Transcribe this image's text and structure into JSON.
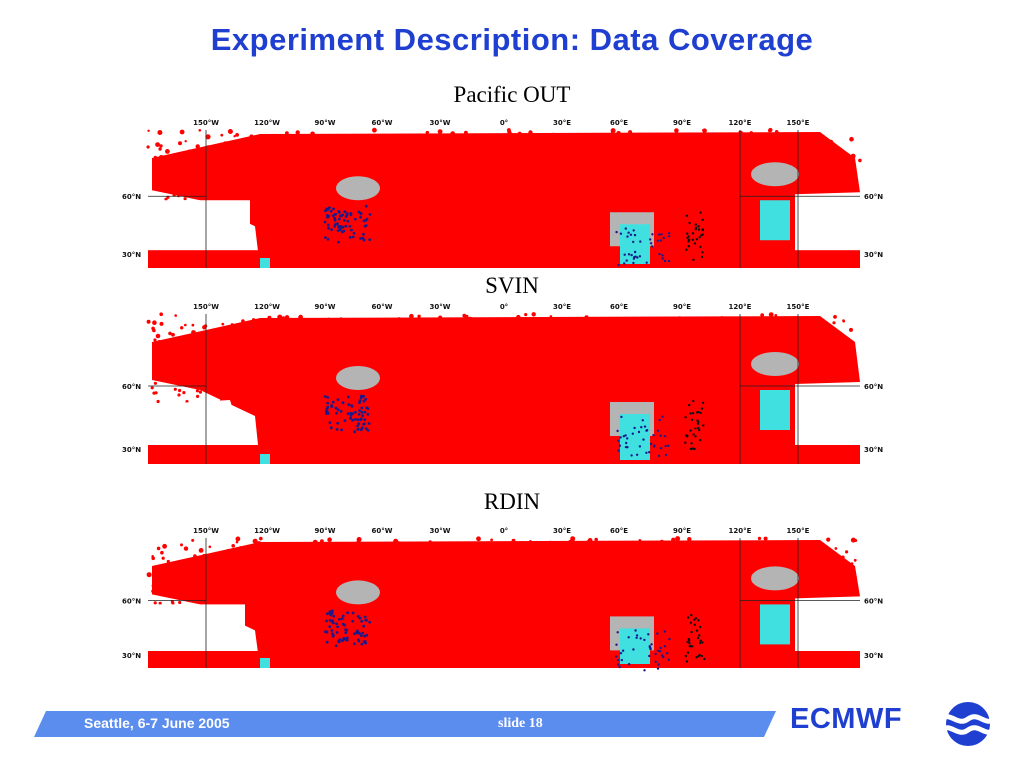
{
  "slide": {
    "title": "Experiment Description: Data Coverage"
  },
  "panels": [
    {
      "label": "Pacific OUT"
    },
    {
      "label": "SVIN"
    },
    {
      "label": "RDIN"
    }
  ],
  "map_axes": {
    "longitudes": [
      "150°W",
      "120°W",
      "90°W",
      "60°W",
      "30°W",
      "0°",
      "30°E",
      "60°E",
      "90°E",
      "120°E",
      "150°E"
    ],
    "latitudes": [
      "60°N",
      "30°N"
    ]
  },
  "colors": {
    "title": "#1f3fd0",
    "observations": "#ff0000",
    "ocean_patch": "#40e0e0",
    "land_gray": "#b4b4b4",
    "dark_obs": "#1a1a8c",
    "footer_bar": "#5b8def"
  },
  "footer": {
    "event": "Seattle, 6-7 June 2005",
    "slide_number": "slide 18"
  },
  "logo": {
    "text": "ECMWF",
    "icon": "ecmwf-waves-icon"
  }
}
